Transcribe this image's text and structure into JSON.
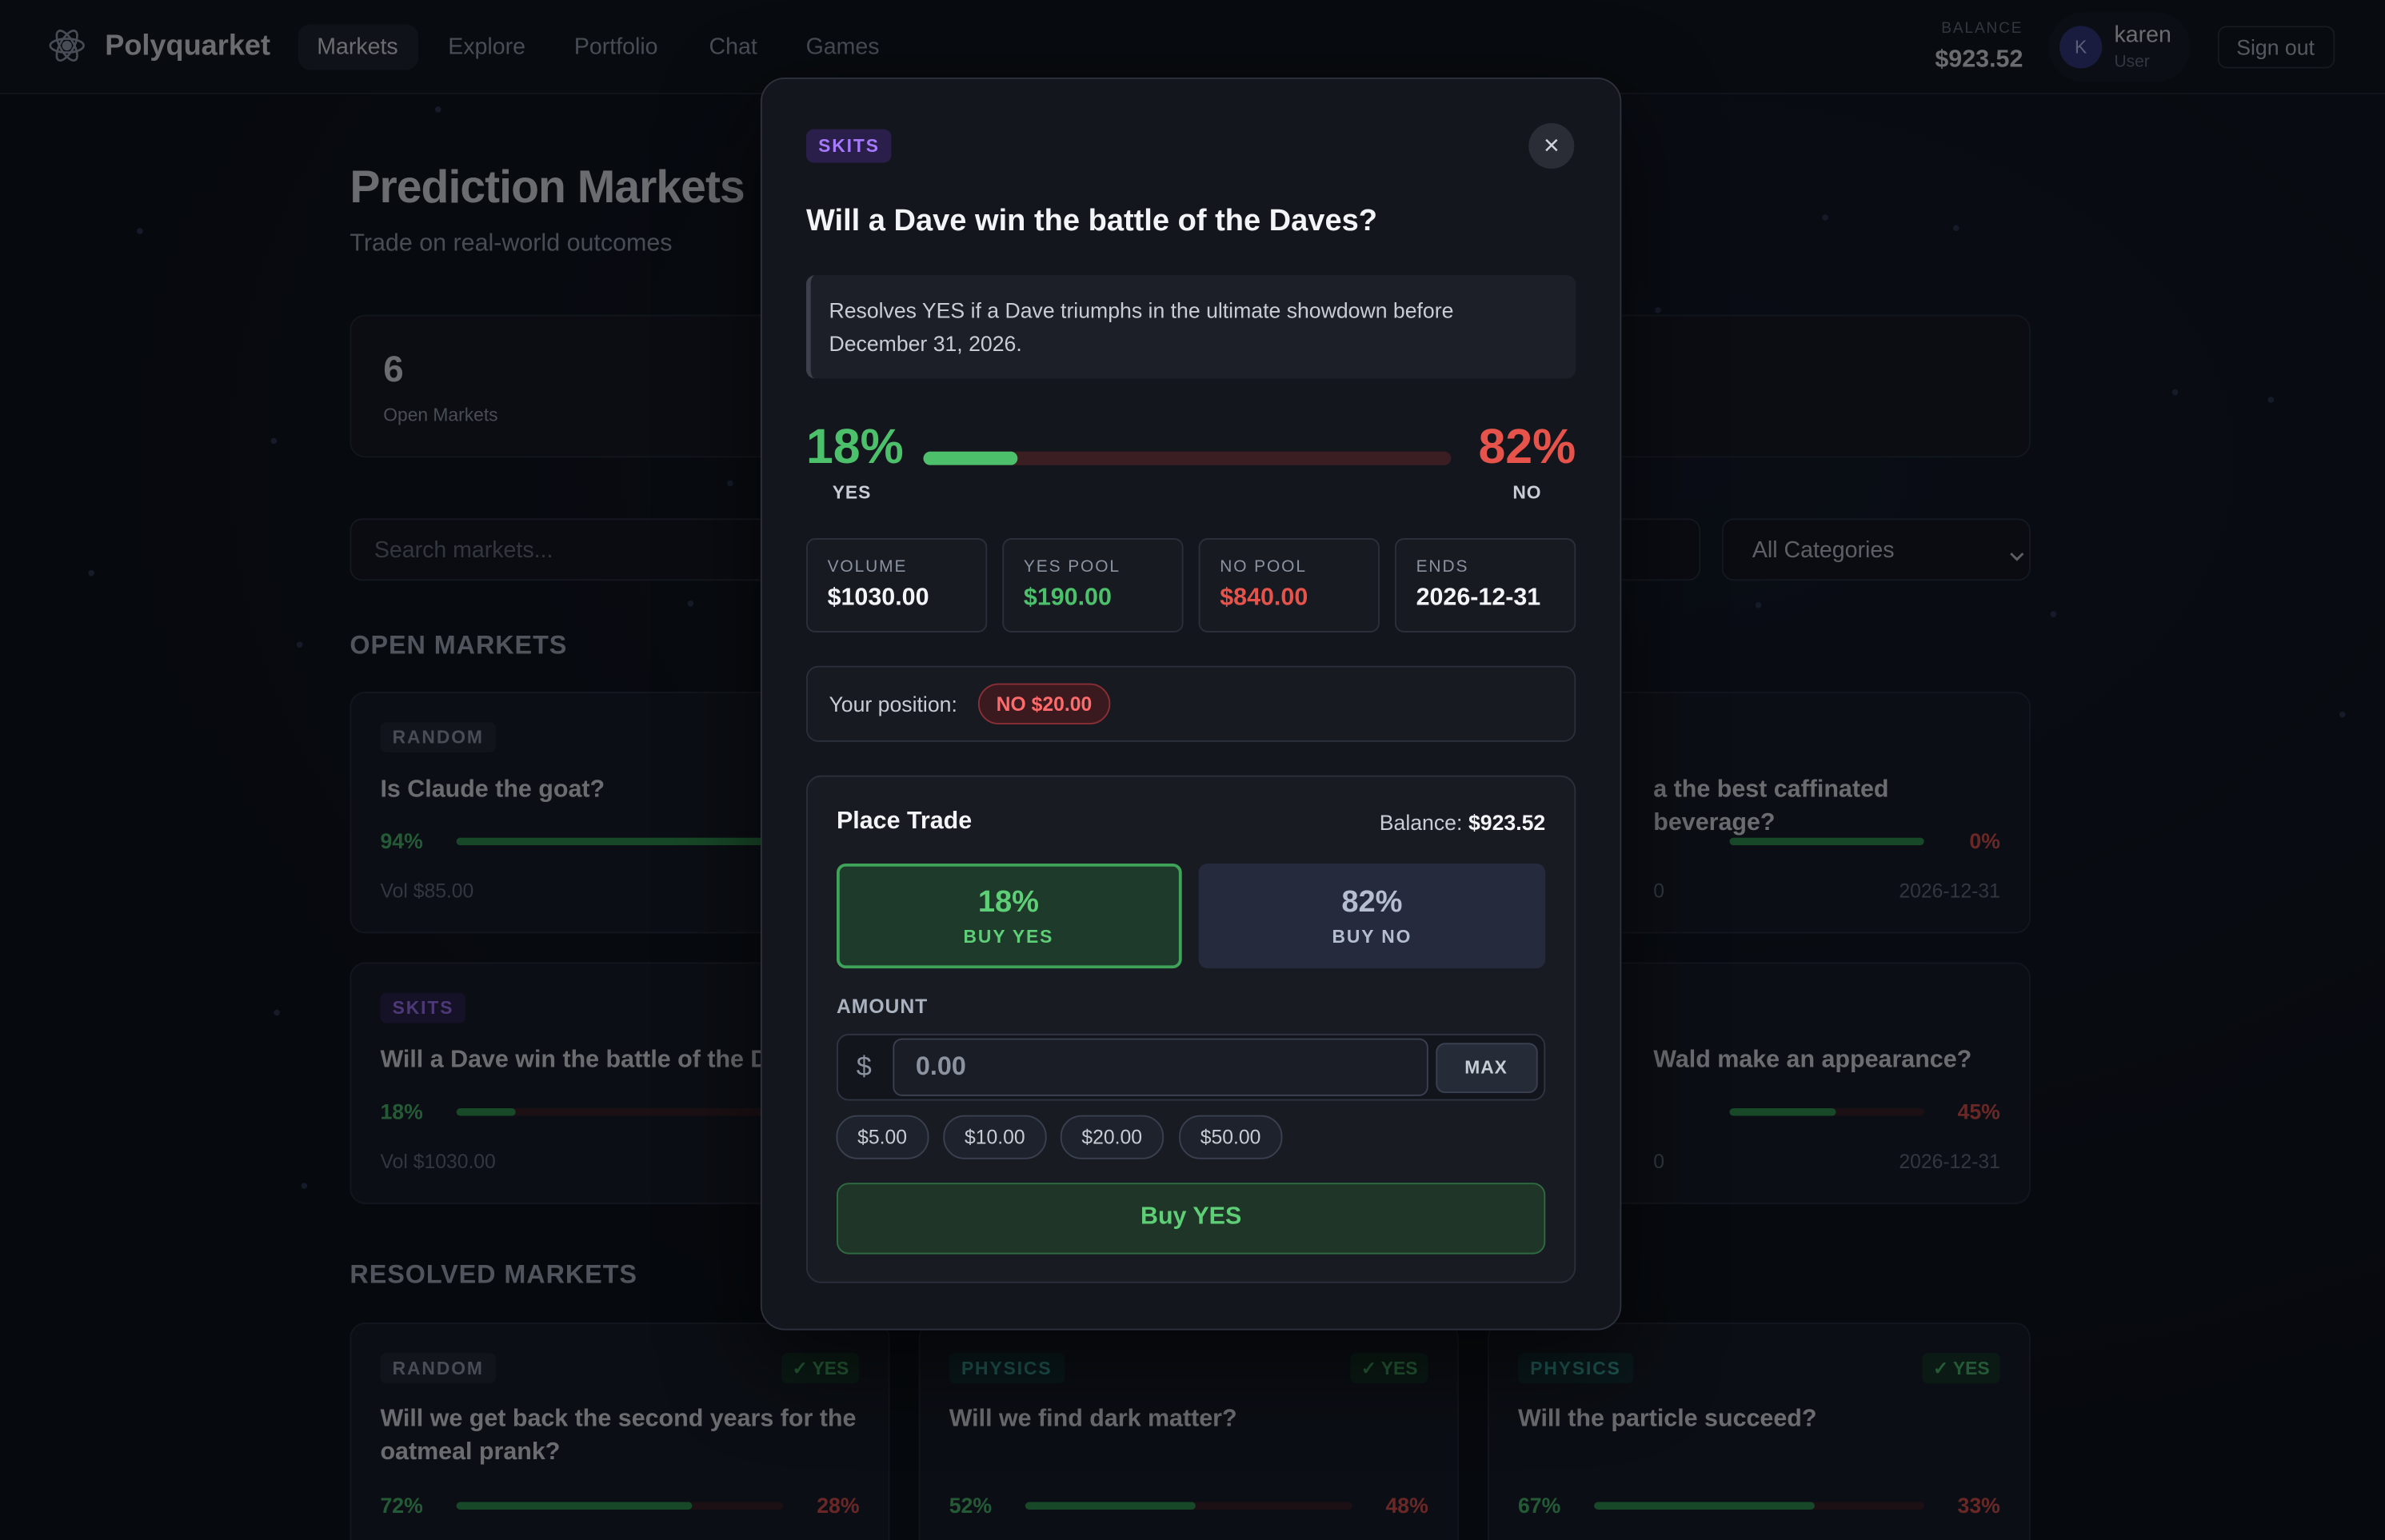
{
  "nav": {
    "brand": "Polyquarket",
    "links": [
      "Markets",
      "Explore",
      "Portfolio",
      "Chat",
      "Games"
    ],
    "balance_label": "BALANCE",
    "balance": "$923.52",
    "avatar": "K",
    "user": "karen",
    "role": "User",
    "sign_out": "Sign out"
  },
  "header": {
    "title": "Prediction Markets",
    "subtitle": "Trade on real-world outcomes"
  },
  "stats": {
    "value": "6",
    "label": "Open Markets"
  },
  "filters": {
    "search_placeholder": "Search markets...",
    "category": "All Categories"
  },
  "open_markets": {
    "heading": "OPEN MARKETS",
    "cards": [
      {
        "category": "RANDOM",
        "question": "Is Claude the goat?",
        "yes": "94%",
        "volume": "Vol $85.00"
      },
      {
        "question": "a the best caffinated beverage?",
        "no": "0%",
        "volume": "0",
        "ends": "2026-12-31"
      },
      {
        "category": "SKITS",
        "question": "Will a Dave win the battle of the D",
        "yes": "18%",
        "volume": "Vol $1030.00"
      },
      {
        "question": "Wald make an appearance?",
        "no": "45%",
        "volume": "0",
        "ends": "2026-12-31"
      }
    ]
  },
  "resolved_markets": {
    "heading": "RESOLVED MARKETS",
    "cards": [
      {
        "category": "RANDOM",
        "status": "✓ YES",
        "question": "Will we get back the second years for the oatmeal prank?",
        "yes": "72%",
        "no": "28%"
      },
      {
        "category": "PHYSICS",
        "status": "✓ YES",
        "question": "Will we find dark matter?",
        "yes": "52%",
        "no": "48%"
      },
      {
        "category": "PHYSICS",
        "status": "✓ YES",
        "question": "Will the particle succeed?",
        "yes": "67%",
        "no": "33%"
      }
    ]
  },
  "modal": {
    "category": "SKITS",
    "close": "×",
    "title": "Will a Dave win the battle of the Daves?",
    "description": "Resolves YES if a Dave triumphs in the ultimate showdown before December 31, 2026.",
    "yes_percent": "18%",
    "yes_label": "YES",
    "no_percent": "82%",
    "no_label": "NO",
    "stats": [
      {
        "label": "VOLUME",
        "value": "$1030.00"
      },
      {
        "label": "YES POOL",
        "value": "$190.00"
      },
      {
        "label": "NO POOL",
        "value": "$840.00"
      },
      {
        "label": "ENDS",
        "value": "2026-12-31"
      }
    ],
    "position": {
      "label": "Your position:",
      "value": "NO $20.00"
    },
    "trade": {
      "title": "Place Trade",
      "balance_label": "Balance:",
      "balance": "$923.52",
      "yes_button": {
        "percent": "18%",
        "label": "BUY YES"
      },
      "no_button": {
        "percent": "82%",
        "label": "BUY NO"
      },
      "amount_label": "AMOUNT",
      "currency": "$",
      "amount_placeholder": "0.00",
      "max": "MAX",
      "quick_amounts": [
        "$5.00",
        "$10.00",
        "$20.00",
        "$50.00"
      ],
      "submit": "Buy YES"
    }
  }
}
